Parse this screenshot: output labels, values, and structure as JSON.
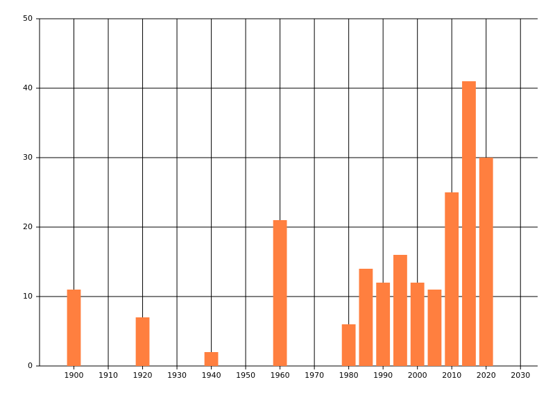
{
  "chart_data": {
    "type": "bar",
    "x": [
      1900,
      1920,
      1940,
      1960,
      1980,
      1985,
      1990,
      1995,
      2000,
      2005,
      2010,
      2015,
      2020
    ],
    "values": [
      11,
      7,
      2,
      21,
      6,
      14,
      12,
      16,
      12,
      11,
      25,
      41,
      30
    ],
    "color": "#ff7f3f",
    "xlim": [
      1890,
      2035
    ],
    "xticks": [
      1900,
      1910,
      1920,
      1930,
      1940,
      1950,
      1960,
      1970,
      1980,
      1990,
      2000,
      2010,
      2020,
      2030
    ],
    "ylim": [
      0,
      50
    ],
    "yticks": [
      0,
      10,
      20,
      30,
      40,
      50
    ],
    "grid": true
  }
}
